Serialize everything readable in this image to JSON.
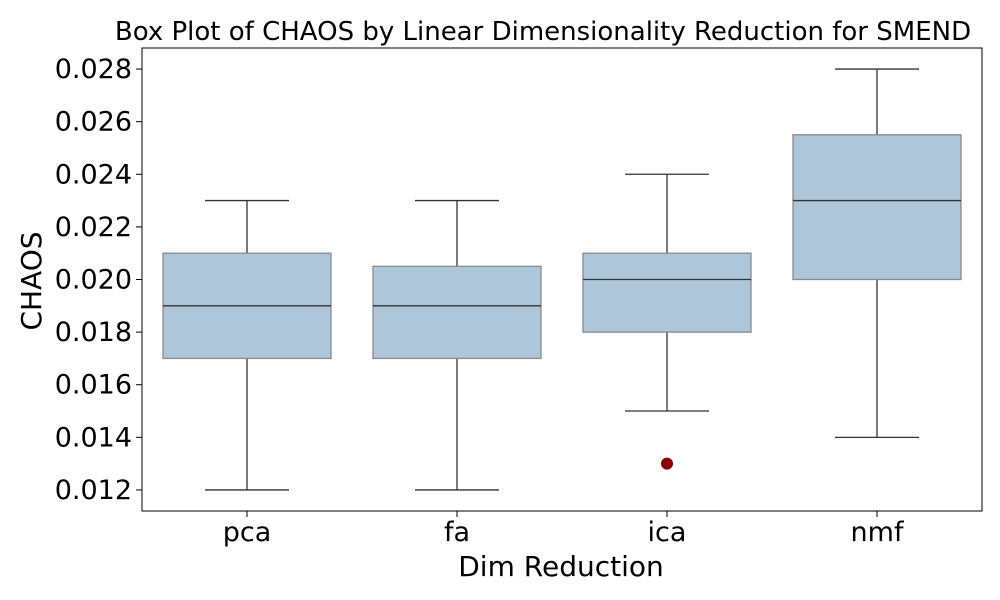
{
  "chart_data": {
    "type": "box",
    "title": "Box Plot of CHAOS by Linear Dimensionality Reduction for SMEND",
    "xlabel": "Dim Reduction",
    "ylabel": "CHAOS",
    "ylim": [
      0.0112,
      0.0288
    ],
    "yticks": [
      "0.012",
      "0.014",
      "0.016",
      "0.018",
      "0.020",
      "0.022",
      "0.024",
      "0.026",
      "0.028"
    ],
    "categories": [
      "pca",
      "fa",
      "ica",
      "nmf"
    ],
    "boxes": [
      {
        "category": "pca",
        "whisker_low": 0.012,
        "q1": 0.017,
        "median": 0.019,
        "q3": 0.021,
        "whisker_high": 0.023,
        "outliers": []
      },
      {
        "category": "fa",
        "whisker_low": 0.012,
        "q1": 0.017,
        "median": 0.019,
        "q3": 0.0205,
        "whisker_high": 0.023,
        "outliers": []
      },
      {
        "category": "ica",
        "whisker_low": 0.015,
        "q1": 0.018,
        "median": 0.02,
        "q3": 0.021,
        "whisker_high": 0.024,
        "outliers": [
          0.013
        ]
      },
      {
        "category": "nmf",
        "whisker_low": 0.014,
        "q1": 0.02,
        "median": 0.023,
        "q3": 0.0255,
        "whisker_high": 0.028,
        "outliers": []
      }
    ],
    "grid": false,
    "colors": {
      "box_fill": "#adc6da",
      "box_edge": "#8a8a8a",
      "line": "#333333",
      "outlier": "#8b0000"
    }
  }
}
